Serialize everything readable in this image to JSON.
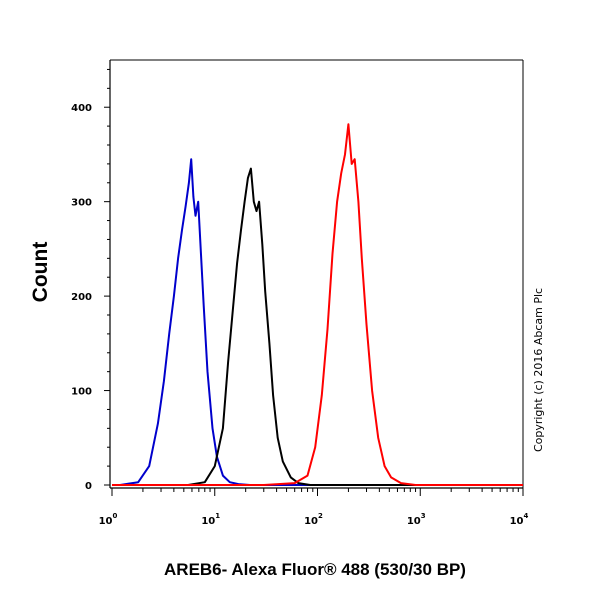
{
  "chart_data": {
    "type": "line",
    "xlabel": "AREB6- Alexa Fluor® 488 (530/30 BP)",
    "ylabel": "Count",
    "x_scale": "log",
    "xlim": [
      1,
      10000
    ],
    "ylim": [
      0,
      450
    ],
    "x_ticks": [
      {
        "base": "10",
        "exp": "0",
        "value": 1
      },
      {
        "base": "10",
        "exp": "1",
        "value": 10
      },
      {
        "base": "10",
        "exp": "2",
        "value": 100
      },
      {
        "base": "10",
        "exp": "3",
        "value": 1000
      },
      {
        "base": "10",
        "exp": "4",
        "value": 10000
      }
    ],
    "y_ticks": [
      "0",
      "100",
      "200",
      "300",
      "400"
    ],
    "grid": false,
    "copyright": "Copyright (c) 2016 Abcam Plc",
    "series": [
      {
        "color": "#0000cc",
        "x": [
          1.2,
          1.8,
          2.3,
          2.8,
          3.2,
          3.6,
          4.0,
          4.4,
          4.8,
          5.2,
          5.6,
          5.9,
          6.2,
          6.5,
          6.9,
          7.3,
          7.8,
          8.5,
          9.5,
          10.5,
          12,
          14,
          17,
          22
        ],
        "y": [
          0,
          3,
          20,
          65,
          110,
          160,
          200,
          240,
          270,
          295,
          320,
          345,
          305,
          285,
          300,
          250,
          190,
          120,
          60,
          30,
          10,
          3,
          1,
          0
        ]
      },
      {
        "color": "#000000",
        "x": [
          5.5,
          8,
          10,
          12,
          13.5,
          15,
          16.5,
          18,
          19.5,
          21,
          22.5,
          24,
          25.5,
          27,
          29,
          31,
          34,
          37,
          41,
          46,
          55,
          65,
          85
        ],
        "y": [
          0,
          3,
          20,
          60,
          130,
          185,
          235,
          270,
          300,
          325,
          335,
          300,
          290,
          300,
          255,
          205,
          150,
          95,
          50,
          25,
          8,
          2,
          0
        ]
      },
      {
        "color": "#ff0000",
        "x": [
          30,
          60,
          80,
          95,
          110,
          125,
          140,
          155,
          170,
          185,
          200,
          215,
          230,
          250,
          270,
          300,
          340,
          390,
          450,
          520,
          650,
          900
        ],
        "y": [
          0,
          2,
          10,
          40,
          95,
          165,
          245,
          300,
          330,
          350,
          382,
          340,
          345,
          300,
          240,
          170,
          100,
          50,
          20,
          8,
          2,
          0
        ]
      }
    ]
  }
}
